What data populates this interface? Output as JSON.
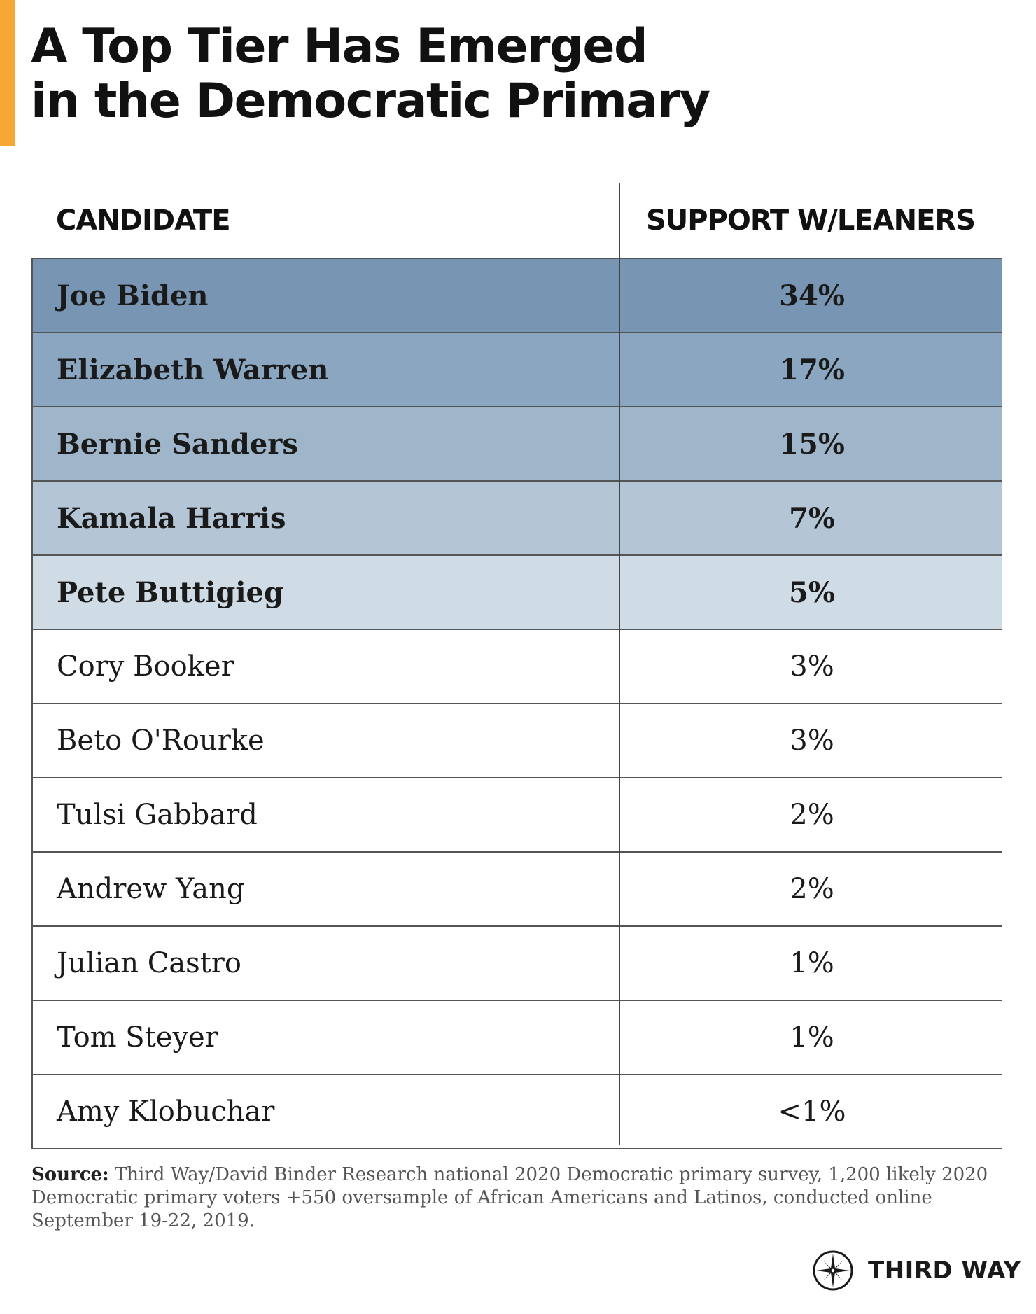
{
  "header": {
    "title_line1": "A Top Tier Has Emerged",
    "title_line2": "in the Democratic Primary"
  },
  "table": {
    "col_candidate": "CANDIDATE",
    "col_support": "SUPPORT W/LEANERS",
    "rows": [
      {
        "name": "Joe Biden",
        "value": "34%",
        "bg": "#7896b3"
      },
      {
        "name": "Elizabeth Warren",
        "value": "17%",
        "bg": "#8aa6c0"
      },
      {
        "name": "Bernie Sanders",
        "value": "15%",
        "bg": "#9fb5ca"
      },
      {
        "name": "Kamala Harris",
        "value": "7%",
        "bg": "#b4c6d6"
      },
      {
        "name": "Pete Buttigieg",
        "value": "5%",
        "bg": "#cfdbe5"
      },
      {
        "name": "Cory Booker",
        "value": "3%",
        "bg": "#ffffff"
      },
      {
        "name": "Beto O'Rourke",
        "value": "3%",
        "bg": "#ffffff"
      },
      {
        "name": "Tulsi Gabbard",
        "value": "2%",
        "bg": "#ffffff"
      },
      {
        "name": "Andrew Yang",
        "value": "2%",
        "bg": "#ffffff"
      },
      {
        "name": "Julian Castro",
        "value": "1%",
        "bg": "#ffffff"
      },
      {
        "name": "Tom Steyer",
        "value": "1%",
        "bg": "#ffffff"
      },
      {
        "name": "Amy Klobuchar",
        "value": "<1%",
        "bg": "#ffffff"
      }
    ]
  },
  "footer": {
    "source_label": "Source:",
    "source_text": " Third Way/David Binder Research national 2020 Democratic primary survey, 1,200 likely 2020 Democratic primary voters +550 oversample of African Americans and Latinos, conducted online September 19-22, 2019."
  },
  "logo": {
    "text": "THIRD WAY",
    "icon": "compass-star-icon"
  },
  "colors": {
    "accent": "#f7a736"
  }
}
